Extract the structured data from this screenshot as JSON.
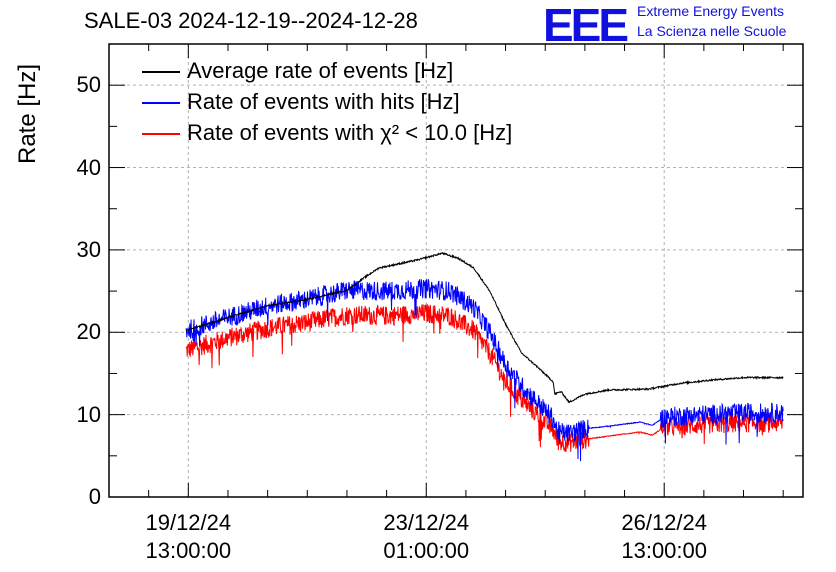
{
  "header": {
    "title": "SALE-03 2024-12-19--2024-12-28",
    "logo": "EEE",
    "logo_line1": "Extreme Energy Events",
    "logo_line2": "La Scienza nelle Scuole"
  },
  "colors": {
    "average": "#000000",
    "hits": "#0000ff",
    "chi2": "#ff0000",
    "grid": "#b0b0b0"
  },
  "chart_data": {
    "type": "line",
    "title": "SALE-03 2024-12-19--2024-12-28",
    "xlabel": "",
    "ylabel": "Rate [Hz]",
    "ylim": [
      0,
      55
    ],
    "yticks": [
      0,
      10,
      20,
      30,
      40,
      50
    ],
    "ytick_labels": [
      "0",
      "10",
      "20",
      "30",
      "40",
      "50"
    ],
    "xlim_days": [
      0,
      8.75
    ],
    "xticks": [
      {
        "day": 1.0,
        "date": "19/12/24",
        "time": "13:00:00"
      },
      {
        "day": 4.0,
        "date": "23/12/24",
        "time": "01:00:00"
      },
      {
        "day": 7.0,
        "date": "26/12/24",
        "time": "13:00:00"
      }
    ],
    "grid": true,
    "legend_position": "top-left",
    "series": [
      {
        "name": "Average rate of events [Hz]",
        "color": "#000000",
        "noise": 0.1,
        "points": [
          [
            0.97,
            20.2
          ],
          [
            1.5,
            21.8
          ],
          [
            2.0,
            23.2
          ],
          [
            2.5,
            24.0
          ],
          [
            3.0,
            25.1
          ],
          [
            3.2,
            26.5
          ],
          [
            3.4,
            27.8
          ],
          [
            3.6,
            28.2
          ],
          [
            3.9,
            28.8
          ],
          [
            4.2,
            29.6
          ],
          [
            4.4,
            29.0
          ],
          [
            4.6,
            27.8
          ],
          [
            4.8,
            25.0
          ],
          [
            5.0,
            21.0
          ],
          [
            5.2,
            17.5
          ],
          [
            5.4,
            15.8
          ],
          [
            5.6,
            14.0
          ],
          [
            5.62,
            12.5
          ],
          [
            5.7,
            12.8
          ],
          [
            5.8,
            11.5
          ],
          [
            6.0,
            12.5
          ],
          [
            6.3,
            13.0
          ],
          [
            6.8,
            13.1
          ],
          [
            7.2,
            13.8
          ],
          [
            7.6,
            14.2
          ],
          [
            8.0,
            14.5
          ],
          [
            8.5,
            14.5
          ]
        ]
      },
      {
        "name": "Rate of events with hits [Hz]",
        "color": "#0000ff",
        "noise": 1.2,
        "points": [
          [
            0.97,
            20.2
          ],
          [
            1.5,
            21.8
          ],
          [
            2.0,
            23.2
          ],
          [
            2.5,
            24.0
          ],
          [
            3.0,
            25.1
          ],
          [
            3.5,
            25.0
          ],
          [
            4.0,
            25.3
          ],
          [
            4.3,
            25.0
          ],
          [
            4.6,
            23.0
          ],
          [
            4.8,
            20.0
          ],
          [
            5.0,
            16.0
          ],
          [
            5.2,
            13.5
          ],
          [
            5.4,
            11.5
          ],
          [
            5.6,
            9.5
          ],
          [
            5.65,
            8.0
          ],
          [
            5.8,
            7.7
          ],
          [
            6.0,
            8.3
          ],
          [
            6.3,
            8.6
          ],
          [
            6.7,
            9.1
          ],
          [
            6.85,
            8.7
          ],
          [
            7.0,
            9.7
          ],
          [
            7.5,
            10.0
          ],
          [
            8.0,
            10.2
          ],
          [
            8.5,
            10.2
          ]
        ]
      },
      {
        "name": "Rate of events with χ² < 10.0 [Hz]",
        "color": "#ff0000",
        "noise": 1.2,
        "points": [
          [
            0.97,
            17.8
          ],
          [
            1.5,
            19.3
          ],
          [
            2.0,
            20.5
          ],
          [
            2.5,
            21.2
          ],
          [
            3.0,
            22.1
          ],
          [
            3.5,
            22.0
          ],
          [
            4.0,
            22.3
          ],
          [
            4.3,
            22.0
          ],
          [
            4.6,
            20.2
          ],
          [
            4.8,
            17.5
          ],
          [
            5.0,
            14.0
          ],
          [
            5.2,
            11.8
          ],
          [
            5.4,
            10.0
          ],
          [
            5.6,
            8.2
          ],
          [
            5.65,
            6.8
          ],
          [
            5.8,
            6.6
          ],
          [
            6.0,
            7.0
          ],
          [
            6.3,
            7.4
          ],
          [
            6.7,
            7.9
          ],
          [
            6.85,
            7.5
          ],
          [
            7.0,
            8.5
          ],
          [
            7.5,
            8.8
          ],
          [
            8.0,
            9.0
          ],
          [
            8.5,
            9.0
          ]
        ]
      }
    ],
    "legend": [
      {
        "label": "Average rate of events [Hz]",
        "color": "#000000"
      },
      {
        "label": "Rate of events with hits [Hz]",
        "color": "#0000ff"
      },
      {
        "label": "Rate of events with χ² < 10.0 [Hz]",
        "color": "#ff0000"
      }
    ]
  }
}
